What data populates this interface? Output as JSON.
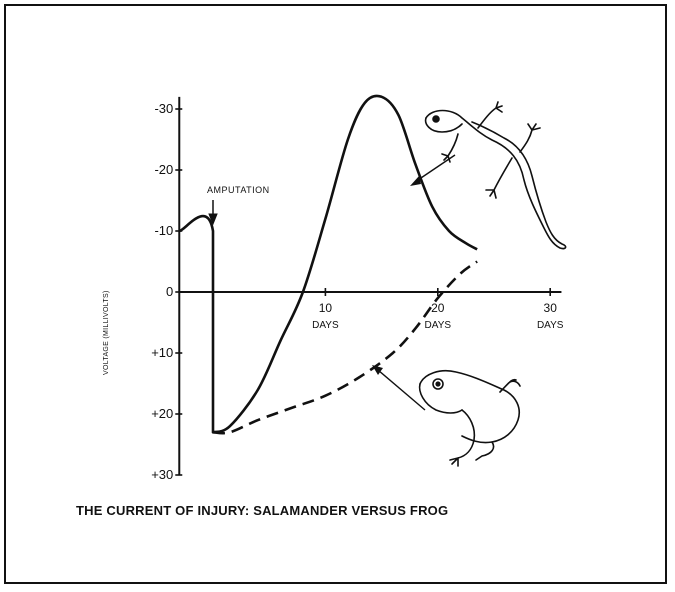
{
  "chart_data": {
    "type": "line",
    "title": "THE CURRENT OF INJURY: SALAMANDER VERSUS FROG",
    "ylabel": "VOLTAGE (MILLIVOLTS)",
    "xlabel": "",
    "y_ticks": [
      "-30",
      "-20",
      "-10",
      "0",
      "+10",
      "+20",
      "+30"
    ],
    "y_tick_values": [
      -30,
      -20,
      -10,
      0,
      10,
      20,
      30
    ],
    "x_ticks": [
      {
        "value": 10,
        "label": "10",
        "unit": "DAYS"
      },
      {
        "value": 20,
        "label": "20",
        "unit": "DAYS"
      },
      {
        "value": 30,
        "label": "30",
        "unit": "DAYS"
      }
    ],
    "xlim": [
      -3,
      31
    ],
    "ylim": [
      -31,
      30
    ],
    "annotation": {
      "text": "AMPUTATION",
      "x": 0
    },
    "grid": false,
    "series": [
      {
        "icon": "salamander-icon",
        "style": "solid",
        "x": [
          -3,
          0,
          0,
          1.5,
          4,
          6,
          8,
          10,
          12,
          13.5,
          15,
          16.5,
          18,
          19.5,
          21,
          22.5,
          23.5
        ],
        "y": [
          -10,
          -10,
          23,
          22,
          16,
          8,
          0,
          -12,
          -25,
          -31,
          -32,
          -29,
          -21,
          -14,
          -10,
          -8,
          -7
        ]
      },
      {
        "icon": "frog-icon",
        "style": "dashed",
        "x": [
          0,
          1.5,
          4,
          7,
          10,
          13,
          16,
          18,
          20,
          22,
          23.5
        ],
        "y": [
          23,
          23,
          21,
          19,
          17,
          14,
          10,
          6,
          1,
          -3,
          -5
        ]
      }
    ]
  },
  "icons": [
    "salamander-icon",
    "frog-icon"
  ]
}
